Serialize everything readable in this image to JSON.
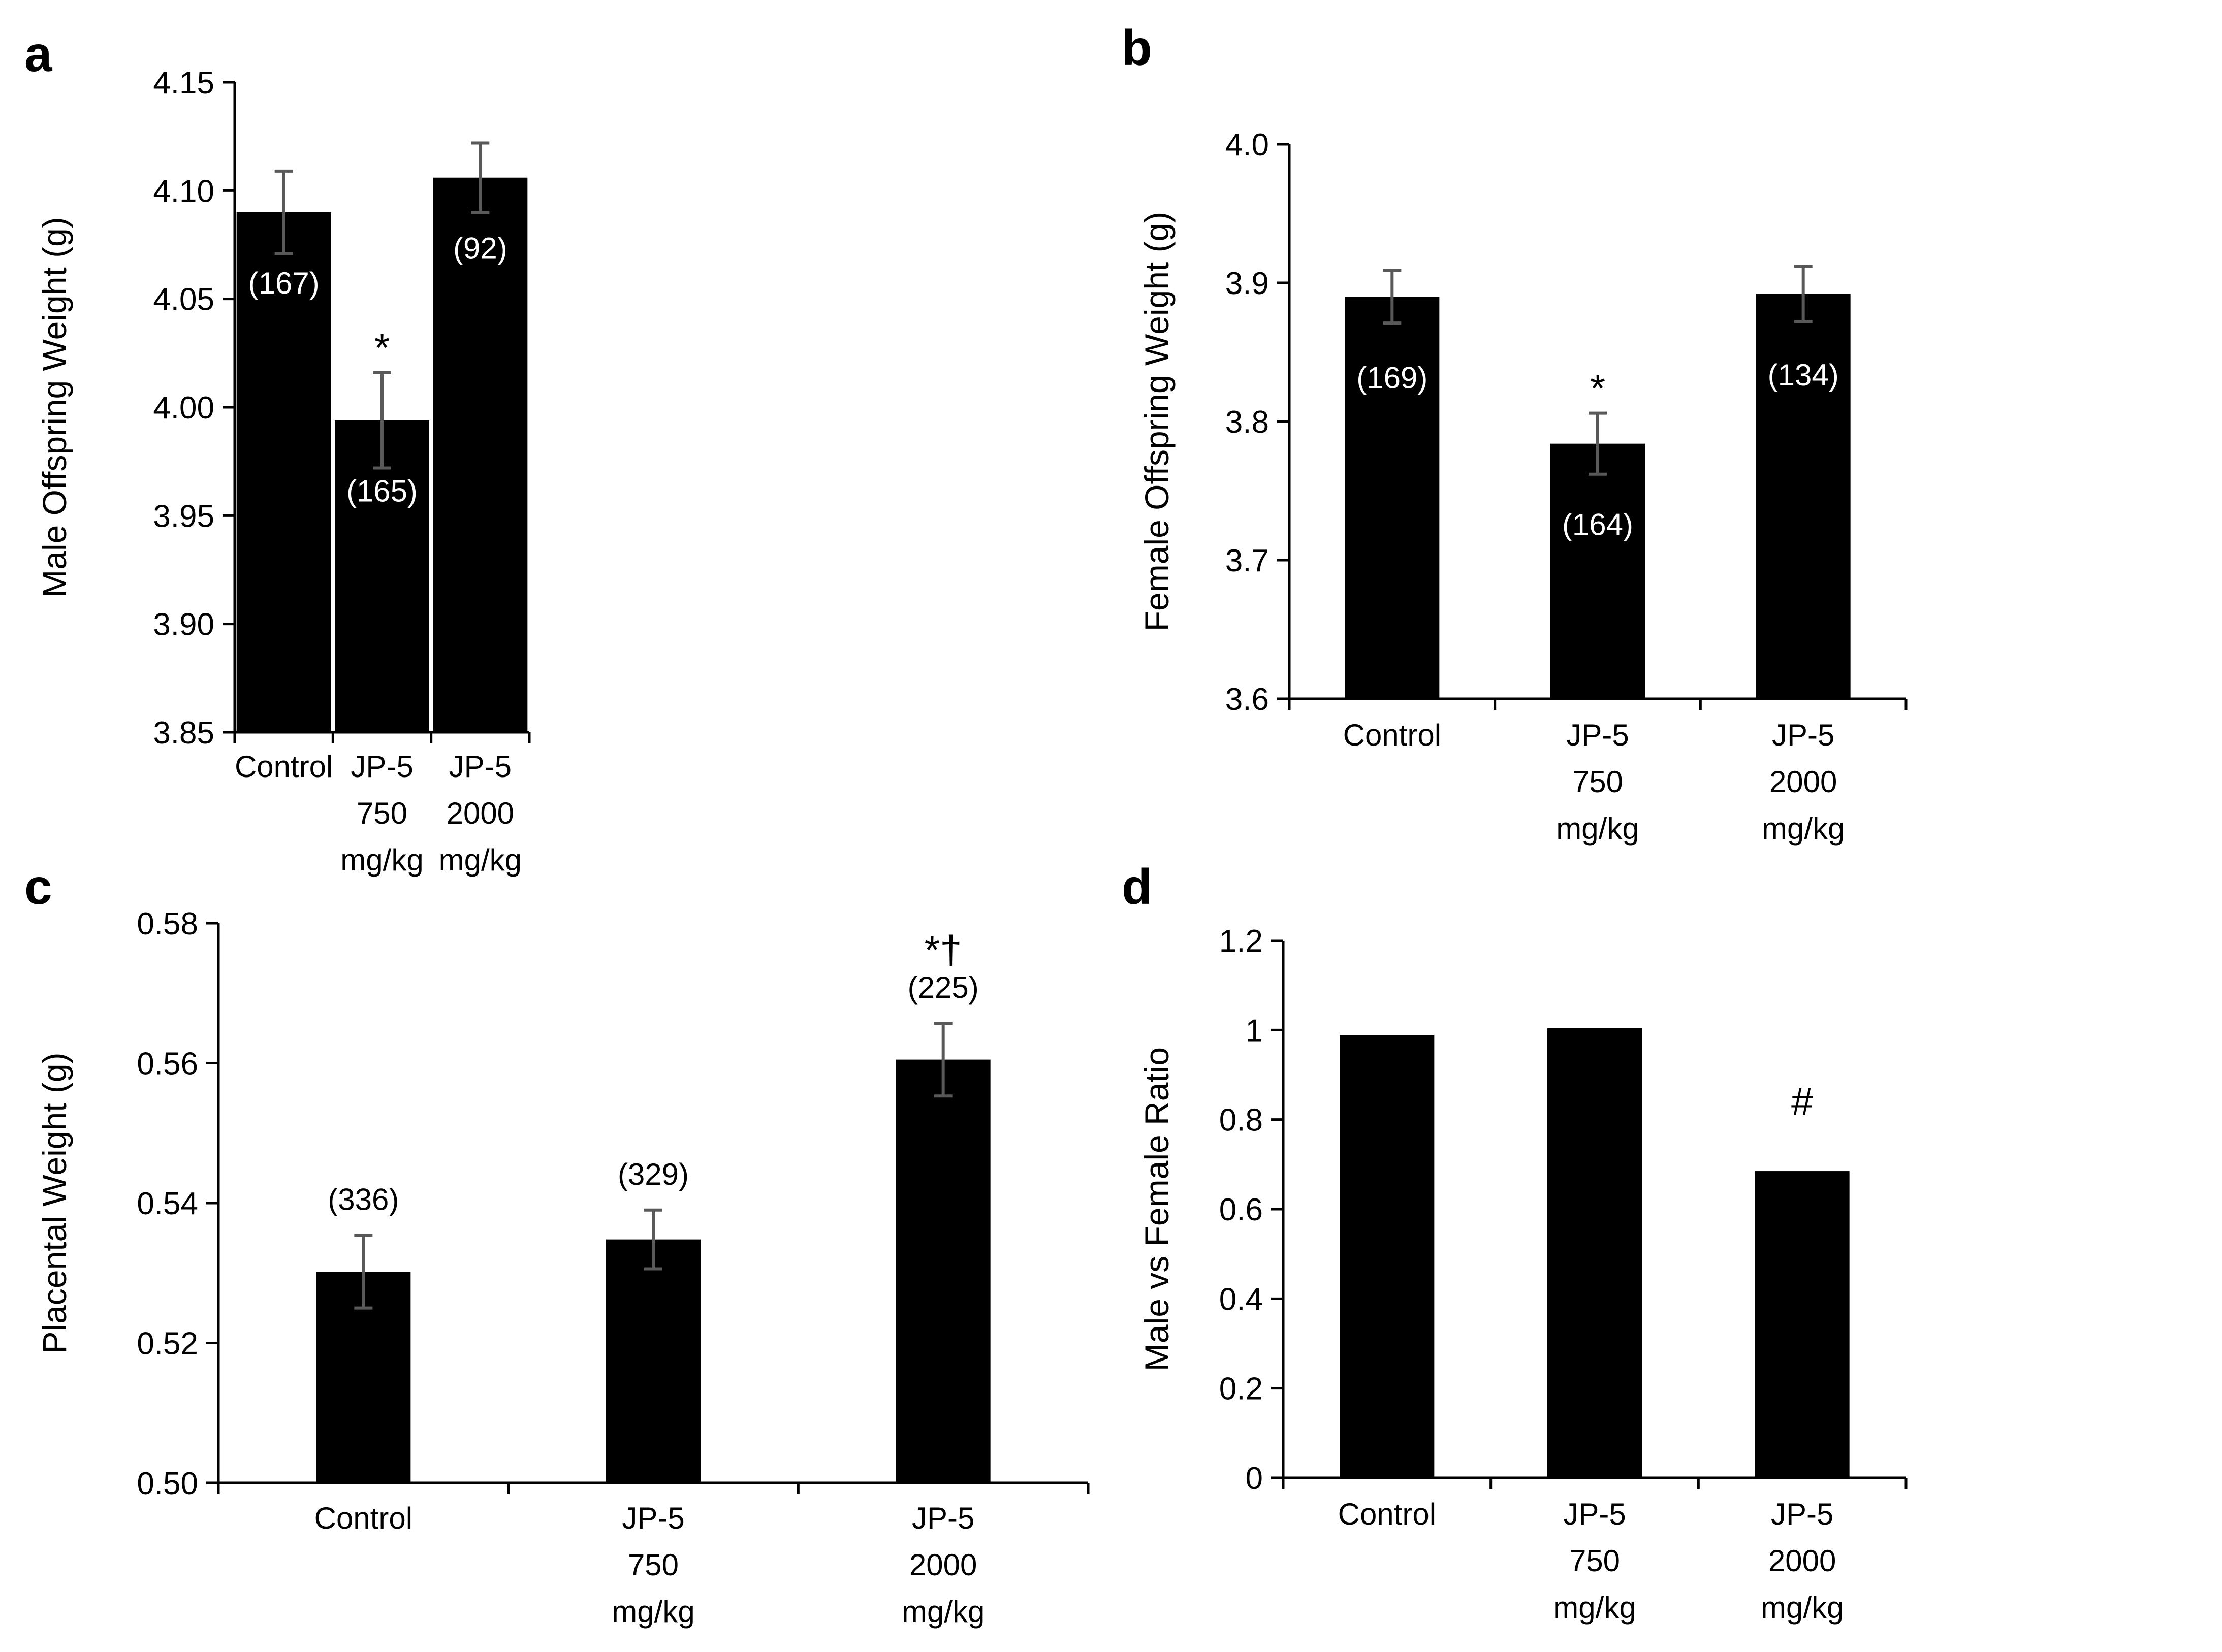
{
  "colors": {
    "bar": "#000000",
    "error_bar": "#595959",
    "inside_label": "#ffffff",
    "outside_label": "#000000"
  },
  "chart_data": [
    {
      "panel": "a",
      "type": "bar",
      "ylabel": "Male Offspring Weight (g)",
      "ylim": [
        3.85,
        4.15
      ],
      "yticks": [
        "3.85",
        "3.90",
        "3.95",
        "4.00",
        "4.05",
        "4.10",
        "4.15"
      ],
      "categories": [
        [
          "Control"
        ],
        [
          "JP-5",
          "750",
          "mg/kg"
        ],
        [
          "JP-5",
          "2000",
          "mg/kg"
        ]
      ],
      "values": [
        4.09,
        3.994,
        4.106
      ],
      "errors": [
        0.019,
        0.022,
        0.016
      ],
      "n_labels": [
        "(167)",
        "(165)",
        "(92)"
      ],
      "n_label_placement": "inside",
      "significance": [
        "",
        "*",
        ""
      ]
    },
    {
      "panel": "b",
      "type": "bar",
      "ylabel": "Female Offspring Weight (g)",
      "ylim": [
        3.6,
        4.0
      ],
      "yticks": [
        "3.6",
        "3.7",
        "3.8",
        "3.9",
        "4.0"
      ],
      "categories": [
        [
          "Control"
        ],
        [
          "JP-5",
          "750",
          "mg/kg"
        ],
        [
          "JP-5",
          "2000",
          "mg/kg"
        ]
      ],
      "values": [
        3.89,
        3.784,
        3.892
      ],
      "errors": [
        0.019,
        0.022,
        0.02
      ],
      "n_labels": [
        "(169)",
        "(164)",
        "(134)"
      ],
      "n_label_placement": "inside",
      "significance": [
        "",
        "*",
        ""
      ]
    },
    {
      "panel": "c",
      "type": "bar",
      "ylabel": "Placental Weight (g)",
      "ylim": [
        0.5,
        0.58
      ],
      "yticks": [
        "0.50",
        "0.52",
        "0.54",
        "0.56",
        "0.58"
      ],
      "categories": [
        [
          "Control"
        ],
        [
          "JP-5",
          "750",
          "mg/kg"
        ],
        [
          "JP-5",
          "2000",
          "mg/kg"
        ]
      ],
      "values": [
        0.5302,
        0.5348,
        0.5605
      ],
      "errors": [
        0.0052,
        0.0042,
        0.0052
      ],
      "n_labels": [
        "(336)",
        "(329)",
        "(225)"
      ],
      "n_label_placement": "above",
      "significance": [
        "",
        "",
        "*†"
      ]
    },
    {
      "panel": "d",
      "type": "bar",
      "ylabel": "Male vs Female Ratio",
      "ylim": [
        0,
        1.2
      ],
      "yticks": [
        "0",
        "0.2",
        "0.4",
        "0.6",
        "0.8",
        "1",
        "1.2"
      ],
      "categories": [
        [
          "Control"
        ],
        [
          "JP-5",
          "750",
          "mg/kg"
        ],
        [
          "JP-5",
          "2000",
          "mg/kg"
        ]
      ],
      "values": [
        0.988,
        1.004,
        0.685
      ],
      "errors": [
        0,
        0,
        0
      ],
      "n_labels": [
        "",
        "",
        ""
      ],
      "n_label_placement": "none",
      "significance": [
        "",
        "",
        "#"
      ]
    }
  ]
}
